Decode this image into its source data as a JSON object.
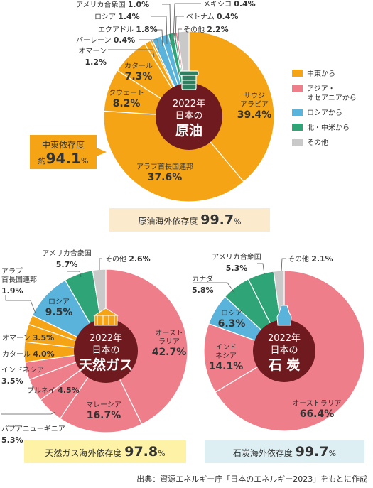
{
  "legend": {
    "items": [
      {
        "label": "中東から",
        "color": "#F5A416"
      },
      {
        "label": "アジア・\nオセアニアから",
        "color": "#EE7E8A"
      },
      {
        "label": "ロシアから",
        "color": "#5AB3DA"
      },
      {
        "label": "北・中米から",
        "color": "#2FA477"
      },
      {
        "label": "その他",
        "color": "#C9C9C9"
      }
    ]
  },
  "chart_data": [
    {
      "type": "pie",
      "title": "2022年 日本の 原油",
      "center": {
        "year": "2022年",
        "line2": "日本の",
        "line3": "原油"
      },
      "categories": [
        "サウジアラビア",
        "アラブ首長国連邦",
        "クウェート",
        "カタール",
        "オマーン",
        "バーレーン",
        "エクアドル",
        "ロシア",
        "アメリカ合衆国",
        "メキシコ",
        "ベトナム",
        "その他"
      ],
      "values": [
        39.4,
        37.6,
        8.2,
        7.3,
        1.2,
        0.4,
        1.8,
        1.4,
        1.0,
        0.4,
        0.4,
        2.2
      ],
      "colors": [
        "#F5A416",
        "#F5A416",
        "#F5A416",
        "#F5A416",
        "#F5A416",
        "#F5A416",
        "#5AB3DA",
        "#5AB3DA",
        "#2FA477",
        "#2FA477",
        "#EE7E8A",
        "#C9C9C9"
      ],
      "labels": [
        {
          "name": "サウジ\nアラビア",
          "pct": "39.4%"
        },
        {
          "name": "アラブ首長国連邦",
          "pct": "37.6%"
        },
        {
          "name": "クウェート",
          "pct": "8.2%"
        },
        {
          "name": "カタール",
          "pct": "7.3%"
        },
        {
          "name": "オマーン",
          "pct": "1.2%"
        },
        {
          "name": "バーレーン",
          "pct": "0.4%"
        },
        {
          "name": "エクアドル",
          "pct": "1.8%"
        },
        {
          "name": "ロシア",
          "pct": "1.4%"
        },
        {
          "name": "アメリカ合衆国",
          "pct": "1.0%"
        },
        {
          "name": "メキシコ",
          "pct": "0.4%"
        },
        {
          "name": "ベトナム",
          "pct": "0.4%"
        },
        {
          "name": "その他",
          "pct": "2.2%"
        }
      ],
      "callout": {
        "line1": "中東依存度",
        "prefix": "約",
        "value": "94.1",
        "unit": "%"
      },
      "footer": {
        "text": "原油海外依存度",
        "value": "99.7",
        "unit": "%"
      }
    },
    {
      "type": "pie",
      "title": "2022年 日本の 天然ガス",
      "center": {
        "year": "2022年",
        "line2": "日本の",
        "line3": "天然ガス"
      },
      "categories": [
        "オーストラリア",
        "マレーシア",
        "パプアニューギニア",
        "ブルネイ",
        "インドネシア",
        "カタール",
        "オマーン",
        "アラブ首長国連邦",
        "ロシア",
        "アメリカ合衆国",
        "その他"
      ],
      "values": [
        42.7,
        16.7,
        5.3,
        4.5,
        3.5,
        4.0,
        3.5,
        1.9,
        9.5,
        5.7,
        2.6
      ],
      "colors": [
        "#EE7E8A",
        "#EE7E8A",
        "#EE7E8A",
        "#EE7E8A",
        "#EE7E8A",
        "#F5A416",
        "#F5A416",
        "#F5A416",
        "#5AB3DA",
        "#2FA477",
        "#C9C9C9"
      ],
      "labels": [
        {
          "name": "オースト\nラリア",
          "pct": "42.7%"
        },
        {
          "name": "マレーシア",
          "pct": "16.7%"
        },
        {
          "name": "パプアニューギニア",
          "pct": "5.3%"
        },
        {
          "name": "ブルネイ",
          "pct": "4.5%"
        },
        {
          "name": "インドネシア",
          "pct": "3.5%"
        },
        {
          "name": "カタール",
          "pct": "4.0%"
        },
        {
          "name": "オマーン",
          "pct": "3.5%"
        },
        {
          "name": "アラブ\n首長国連邦",
          "pct": "1.9%"
        },
        {
          "name": "ロシア",
          "pct": "9.5%"
        },
        {
          "name": "アメリカ合衆国",
          "pct": "5.7%"
        },
        {
          "name": "その他",
          "pct": "2.6%"
        }
      ],
      "footer": {
        "text": "天然ガス海外依存度",
        "value": "97.8",
        "unit": "%"
      }
    },
    {
      "type": "pie",
      "title": "2022年 日本の 石炭",
      "center": {
        "year": "2022年",
        "line2": "日本の",
        "line3": "石 炭"
      },
      "categories": [
        "オーストラリア",
        "インドネシア",
        "ロシア",
        "カナダ",
        "アメリカ合衆国",
        "その他"
      ],
      "values": [
        66.4,
        14.1,
        6.3,
        5.8,
        5.3,
        2.1
      ],
      "colors": [
        "#EE7E8A",
        "#EE7E8A",
        "#5AB3DA",
        "#2FA477",
        "#2FA477",
        "#C9C9C9"
      ],
      "labels": [
        {
          "name": "オーストラリア",
          "pct": "66.4%"
        },
        {
          "name": "インド\nネシア",
          "pct": "14.1%"
        },
        {
          "name": "ロシア",
          "pct": "6.3%"
        },
        {
          "name": "カナダ",
          "pct": "5.8%"
        },
        {
          "name": "アメリカ合衆国",
          "pct": "5.3%"
        },
        {
          "name": "その他",
          "pct": "2.1%"
        }
      ],
      "footer": {
        "text": "石炭海外依存度",
        "value": "99.7",
        "unit": "%"
      }
    }
  ],
  "source": "出典：資源エネルギー庁「日本のエネルギー2023」をもとに作成",
  "colors": {
    "center": "#6E1A1E",
    "callout": "#F5A416",
    "footer_oil": "#FCEACC",
    "footer_gas": "#FDF2A6",
    "footer_coal": "#DDEFF3",
    "divider": "#ffffff"
  }
}
